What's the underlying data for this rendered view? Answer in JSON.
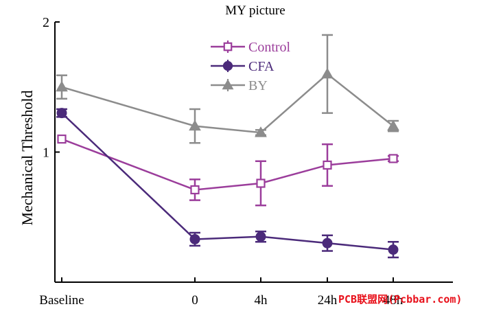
{
  "chart_data": {
    "type": "line",
    "title": "MY picture",
    "xlabel": "",
    "ylabel": "Mechanical Threshold",
    "categories": [
      "Baseline",
      "0",
      "4h",
      "24h",
      "48h"
    ],
    "ylim": [
      0,
      2
    ],
    "yticks": [
      "1",
      "2"
    ],
    "legend_position": "top-center",
    "series": [
      {
        "name": "Control",
        "color": "#9b3d9b",
        "marker": "square-open",
        "x": [
          0,
          2,
          3,
          4,
          5
        ],
        "values": [
          1.1,
          0.71,
          0.76,
          0.9,
          0.95
        ],
        "errors": [
          0.0,
          0.08,
          0.17,
          0.16,
          0.02
        ]
      },
      {
        "name": "CFA",
        "color": "#4b2a7a",
        "marker": "circle-filled",
        "x": [
          0,
          2,
          3,
          4,
          5
        ],
        "values": [
          1.3,
          0.33,
          0.35,
          0.3,
          0.25
        ],
        "errors": [
          0.03,
          0.05,
          0.04,
          0.06,
          0.06
        ]
      },
      {
        "name": "BY",
        "color": "#8c8c8c",
        "marker": "triangle-filled",
        "x": [
          0,
          2,
          3,
          4,
          5
        ],
        "values": [
          1.5,
          1.2,
          1.15,
          1.6,
          1.2
        ],
        "errors": [
          0.09,
          0.13,
          0.02,
          0.3,
          0.04
        ]
      }
    ]
  },
  "watermark": "PCB联盟网(Pcbbar.com)"
}
